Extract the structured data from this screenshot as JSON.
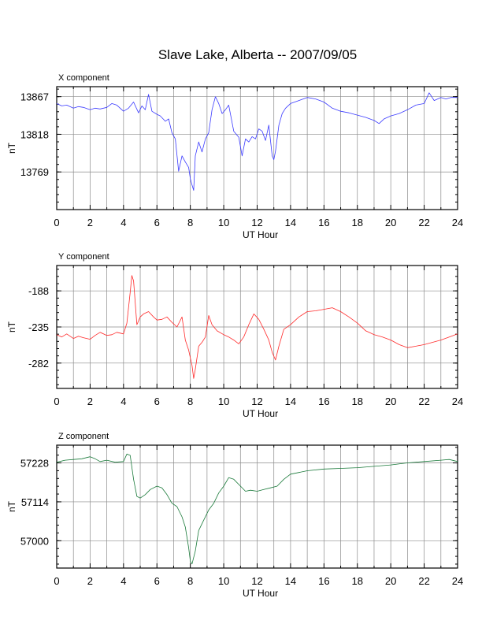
{
  "title": "Slave Lake, Alberta -- 2007/09/05",
  "colors": {
    "x": "#3a3aff",
    "y": "#ff2a2a",
    "z": "#1a7a3a"
  },
  "chart_data": [
    {
      "type": "line",
      "panel_title": "X component",
      "xlabel": "UT Hour",
      "ylabel": "nT",
      "xlim": [
        0,
        24
      ],
      "ylim": [
        13720,
        13880
      ],
      "x_ticks": [
        "0",
        "2",
        "4",
        "6",
        "8",
        "10",
        "12",
        "14",
        "16",
        "18",
        "20",
        "22",
        "24"
      ],
      "y_ticks": [
        13769,
        13818,
        13867
      ],
      "y_tick_labels": [
        "13769",
        "13818",
        "13867"
      ],
      "color_key": "x",
      "series": [
        {
          "x": [
            0,
            0.3,
            0.6,
            1,
            1.3,
            1.6,
            2,
            2.3,
            2.6,
            3,
            3.3,
            3.6,
            4,
            4.3,
            4.6,
            4.9,
            5.1,
            5.3,
            5.5,
            5.7,
            6,
            6.2,
            6.5,
            6.7,
            6.9,
            7.1,
            7.3,
            7.5,
            7.7,
            7.9,
            8.0,
            8.1,
            8.2,
            8.3,
            8.5,
            8.7,
            8.9,
            9.1,
            9.3,
            9.5,
            9.7,
            9.9,
            10.1,
            10.3,
            10.6,
            10.9,
            11.1,
            11.3,
            11.5,
            11.7,
            11.9,
            12.1,
            12.3,
            12.5,
            12.7,
            12.9,
            13.0,
            13.1,
            13.3,
            13.5,
            13.7,
            14,
            14.5,
            15,
            15.5,
            16,
            16.5,
            17,
            17.5,
            18,
            18.5,
            19,
            19.3,
            19.6,
            20,
            20.5,
            21,
            21.5,
            22,
            22.3,
            22.6,
            23,
            23.3,
            23.6,
            24
          ],
          "values": [
            13858,
            13855,
            13856,
            13852,
            13854,
            13853,
            13850,
            13852,
            13851,
            13853,
            13858,
            13856,
            13848,
            13852,
            13860,
            13846,
            13855,
            13850,
            13870,
            13848,
            13844,
            13842,
            13835,
            13838,
            13820,
            13812,
            13770,
            13790,
            13782,
            13775,
            13760,
            13752,
            13745,
            13790,
            13808,
            13795,
            13812,
            13820,
            13850,
            13867,
            13858,
            13845,
            13850,
            13856,
            13822,
            13814,
            13790,
            13812,
            13808,
            13815,
            13812,
            13825,
            13822,
            13810,
            13830,
            13790,
            13785,
            13796,
            13830,
            13845,
            13852,
            13858,
            13862,
            13866,
            13864,
            13860,
            13852,
            13848,
            13846,
            13843,
            13840,
            13836,
            13832,
            13838,
            13842,
            13845,
            13850,
            13856,
            13858,
            13872,
            13862,
            13866,
            13864,
            13866,
            13866
          ]
        }
      ]
    },
    {
      "type": "line",
      "panel_title": "Y component",
      "xlabel": "UT Hour",
      "ylabel": "nT",
      "xlim": [
        0,
        24
      ],
      "ylim": [
        -315,
        -155
      ],
      "x_ticks": [
        "0",
        "2",
        "4",
        "6",
        "8",
        "10",
        "12",
        "14",
        "16",
        "18",
        "20",
        "22",
        "24"
      ],
      "y_ticks": [
        -282,
        -235,
        -188
      ],
      "y_tick_labels": [
        "-282",
        "-235",
        "-188"
      ],
      "color_key": "y",
      "series": [
        {
          "x": [
            0,
            0.3,
            0.6,
            1,
            1.3,
            1.6,
            2,
            2.3,
            2.6,
            3,
            3.3,
            3.6,
            4,
            4.2,
            4.4,
            4.5,
            4.6,
            4.8,
            5,
            5.2,
            5.5,
            5.8,
            6,
            6.3,
            6.6,
            6.9,
            7.2,
            7.5,
            7.7,
            7.9,
            8.1,
            8.2,
            8.3,
            8.5,
            8.7,
            8.9,
            9.1,
            9.3,
            9.6,
            10,
            10.3,
            10.6,
            10.9,
            11.2,
            11.5,
            11.8,
            12.1,
            12.4,
            12.7,
            12.9,
            13.1,
            13.3,
            13.6,
            14,
            14.5,
            15,
            15.5,
            16,
            16.5,
            17,
            17.5,
            18,
            18.5,
            19,
            19.5,
            20,
            20.5,
            21,
            21.5,
            22,
            22.5,
            23,
            23.5,
            24
          ],
          "values": [
            -245,
            -248,
            -244,
            -250,
            -247,
            -249,
            -251,
            -246,
            -242,
            -246,
            -245,
            -242,
            -244,
            -230,
            -190,
            -168,
            -175,
            -232,
            -222,
            -218,
            -215,
            -222,
            -226,
            -225,
            -222,
            -229,
            -235,
            -222,
            -252,
            -265,
            -285,
            -302,
            -290,
            -260,
            -255,
            -248,
            -220,
            -232,
            -240,
            -245,
            -248,
            -252,
            -257,
            -248,
            -232,
            -218,
            -225,
            -238,
            -252,
            -268,
            -278,
            -260,
            -238,
            -232,
            -222,
            -215,
            -214,
            -212,
            -210,
            -215,
            -222,
            -230,
            -240,
            -245,
            -248,
            -252,
            -258,
            -262,
            -260,
            -258,
            -255,
            -252,
            -248,
            -244
          ]
        }
      ]
    },
    {
      "type": "line",
      "panel_title": "Z component",
      "xlabel": "UT Hour",
      "ylabel": "nT",
      "xlim": [
        0,
        24
      ],
      "ylim": [
        56920,
        57280
      ],
      "x_ticks": [
        "0",
        "2",
        "4",
        "6",
        "8",
        "10",
        "12",
        "14",
        "16",
        "18",
        "20",
        "22",
        "24"
      ],
      "y_ticks": [
        57000,
        57114,
        57228
      ],
      "y_tick_labels": [
        "57000",
        "57114",
        "57228"
      ],
      "color_key": "z",
      "series": [
        {
          "x": [
            0,
            0.5,
            1,
            1.5,
            2,
            2.3,
            2.6,
            3,
            3.5,
            4,
            4.2,
            4.4,
            4.6,
            4.8,
            5,
            5.3,
            5.6,
            6,
            6.3,
            6.6,
            6.9,
            7.2,
            7.5,
            7.7,
            7.9,
            8.0,
            8.1,
            8.3,
            8.5,
            8.8,
            9.1,
            9.4,
            9.7,
            10,
            10.3,
            10.6,
            11,
            11.3,
            11.6,
            12,
            12.4,
            12.8,
            13.2,
            13.6,
            14,
            14.5,
            15,
            16,
            17,
            18,
            19,
            20,
            21,
            22,
            23,
            23.5,
            24
          ],
          "values": [
            57230,
            57236,
            57238,
            57240,
            57246,
            57240,
            57232,
            57236,
            57230,
            57232,
            57254,
            57250,
            57180,
            57130,
            57125,
            57135,
            57150,
            57160,
            57155,
            57135,
            57110,
            57100,
            57070,
            57040,
            56980,
            56940,
            56932,
            56970,
            57030,
            57060,
            57090,
            57110,
            57140,
            57160,
            57185,
            57180,
            57160,
            57145,
            57148,
            57145,
            57150,
            57155,
            57160,
            57180,
            57195,
            57200,
            57205,
            57210,
            57212,
            57214,
            57218,
            57222,
            57228,
            57232,
            57236,
            57238,
            57232
          ]
        }
      ]
    }
  ]
}
